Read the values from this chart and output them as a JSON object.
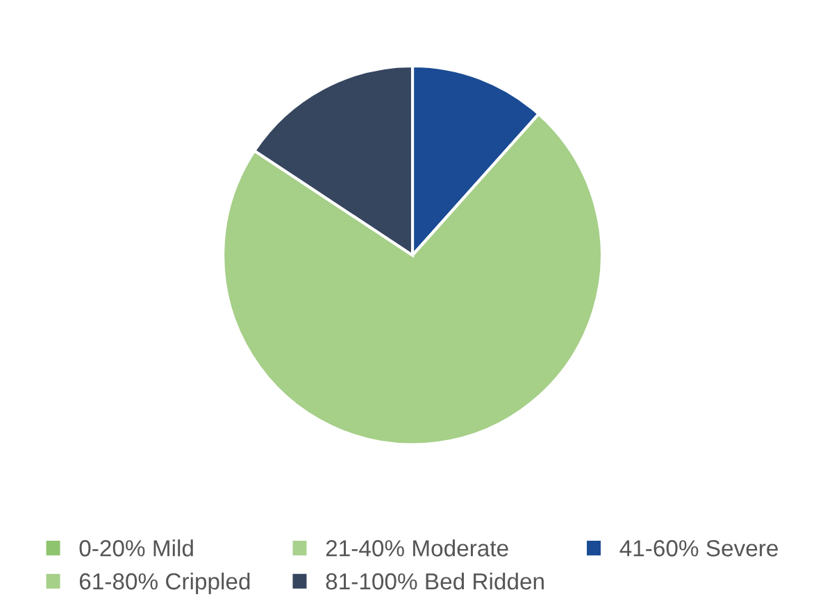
{
  "chart_data": {
    "type": "pie",
    "categories": [
      "0-20% Mild",
      "21-40% Moderate",
      "41-60% Severe",
      "61-80% Crippled",
      "81-100% Bed Ridden"
    ],
    "values": [
      0,
      0,
      11.6,
      72.7,
      15.7
    ],
    "colors": [
      "#8fc46f",
      "#a9d18e",
      "#1a4b94",
      "#a6cf88",
      "#36465f"
    ],
    "legend": "bottom"
  }
}
